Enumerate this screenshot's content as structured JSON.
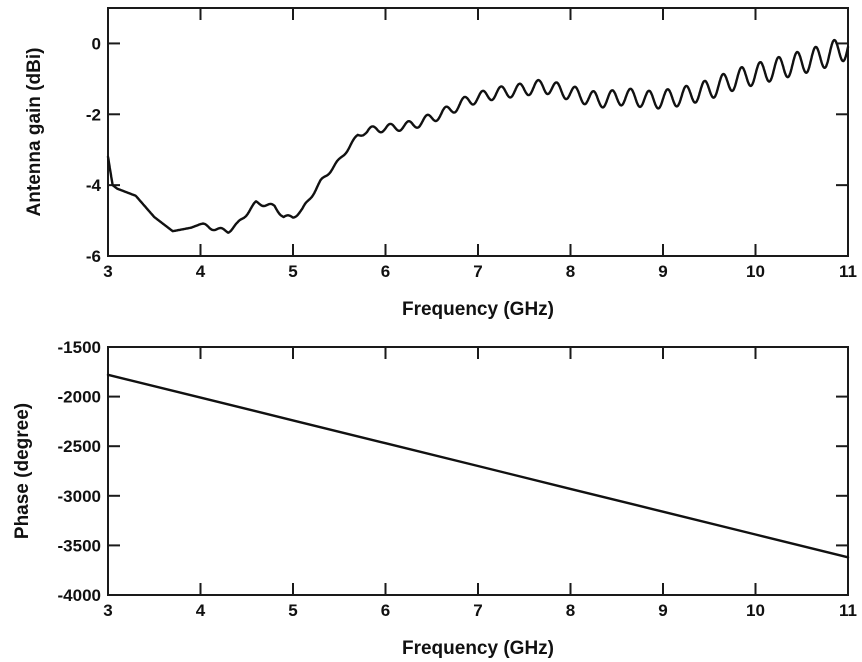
{
  "chart_data": [
    {
      "type": "line",
      "title": "",
      "xlabel": "Frequency (GHz)",
      "ylabel": "Antenna gain (dBi)",
      "xlim": [
        3,
        11
      ],
      "ylim": [
        -6,
        1
      ],
      "xticks": [
        3,
        4,
        5,
        6,
        7,
        8,
        9,
        10,
        11
      ],
      "yticks": [
        0,
        -2,
        -4,
        -6
      ],
      "grid": false,
      "ripple": {
        "start_ghz": 5.8,
        "period_ghz": 0.2,
        "amplitude_db": [
          0.1,
          0.35
        ]
      },
      "series": [
        {
          "x": [
            3.0,
            3.05,
            3.1,
            3.3,
            3.5,
            3.7,
            3.9,
            4.0,
            4.1,
            4.3,
            4.4,
            4.6,
            4.8,
            4.9,
            5.0,
            5.1,
            5.3,
            5.5,
            5.7,
            5.9,
            6.0,
            6.3,
            6.6,
            6.9,
            7.2,
            7.5,
            7.7,
            8.0,
            8.3,
            8.6,
            8.9,
            9.2,
            9.5,
            9.8,
            10.1,
            10.4,
            10.7,
            10.9,
            11.0
          ],
          "values": [
            -3.2,
            -4.0,
            -4.1,
            -4.3,
            -4.9,
            -5.3,
            -5.2,
            -5.1,
            -5.2,
            -5.3,
            -5.1,
            -4.5,
            -4.6,
            -4.9,
            -4.9,
            -4.7,
            -3.9,
            -3.3,
            -2.6,
            -2.4,
            -2.4,
            -2.3,
            -2.0,
            -1.6,
            -1.4,
            -1.3,
            -1.2,
            -1.4,
            -1.6,
            -1.5,
            -1.6,
            -1.5,
            -1.3,
            -1.0,
            -0.8,
            -0.6,
            -0.4,
            -0.2,
            -0.1
          ]
        }
      ]
    },
    {
      "type": "line",
      "title": "",
      "xlabel": "Frequency (GHz)",
      "ylabel": "Phase (degree)",
      "xlim": [
        3,
        11
      ],
      "ylim": [
        -4000,
        -1500
      ],
      "xticks": [
        3,
        4,
        5,
        6,
        7,
        8,
        9,
        10,
        11
      ],
      "yticks": [
        -1500,
        -2000,
        -2500,
        -3000,
        -3500,
        -4000
      ],
      "grid": false,
      "series": [
        {
          "x": [
            3,
            4,
            5,
            6,
            7,
            8,
            9,
            10,
            11
          ],
          "values": [
            -1780,
            -2010,
            -2240,
            -2470,
            -2700,
            -2930,
            -3160,
            -3390,
            -3620
          ]
        }
      ]
    }
  ]
}
